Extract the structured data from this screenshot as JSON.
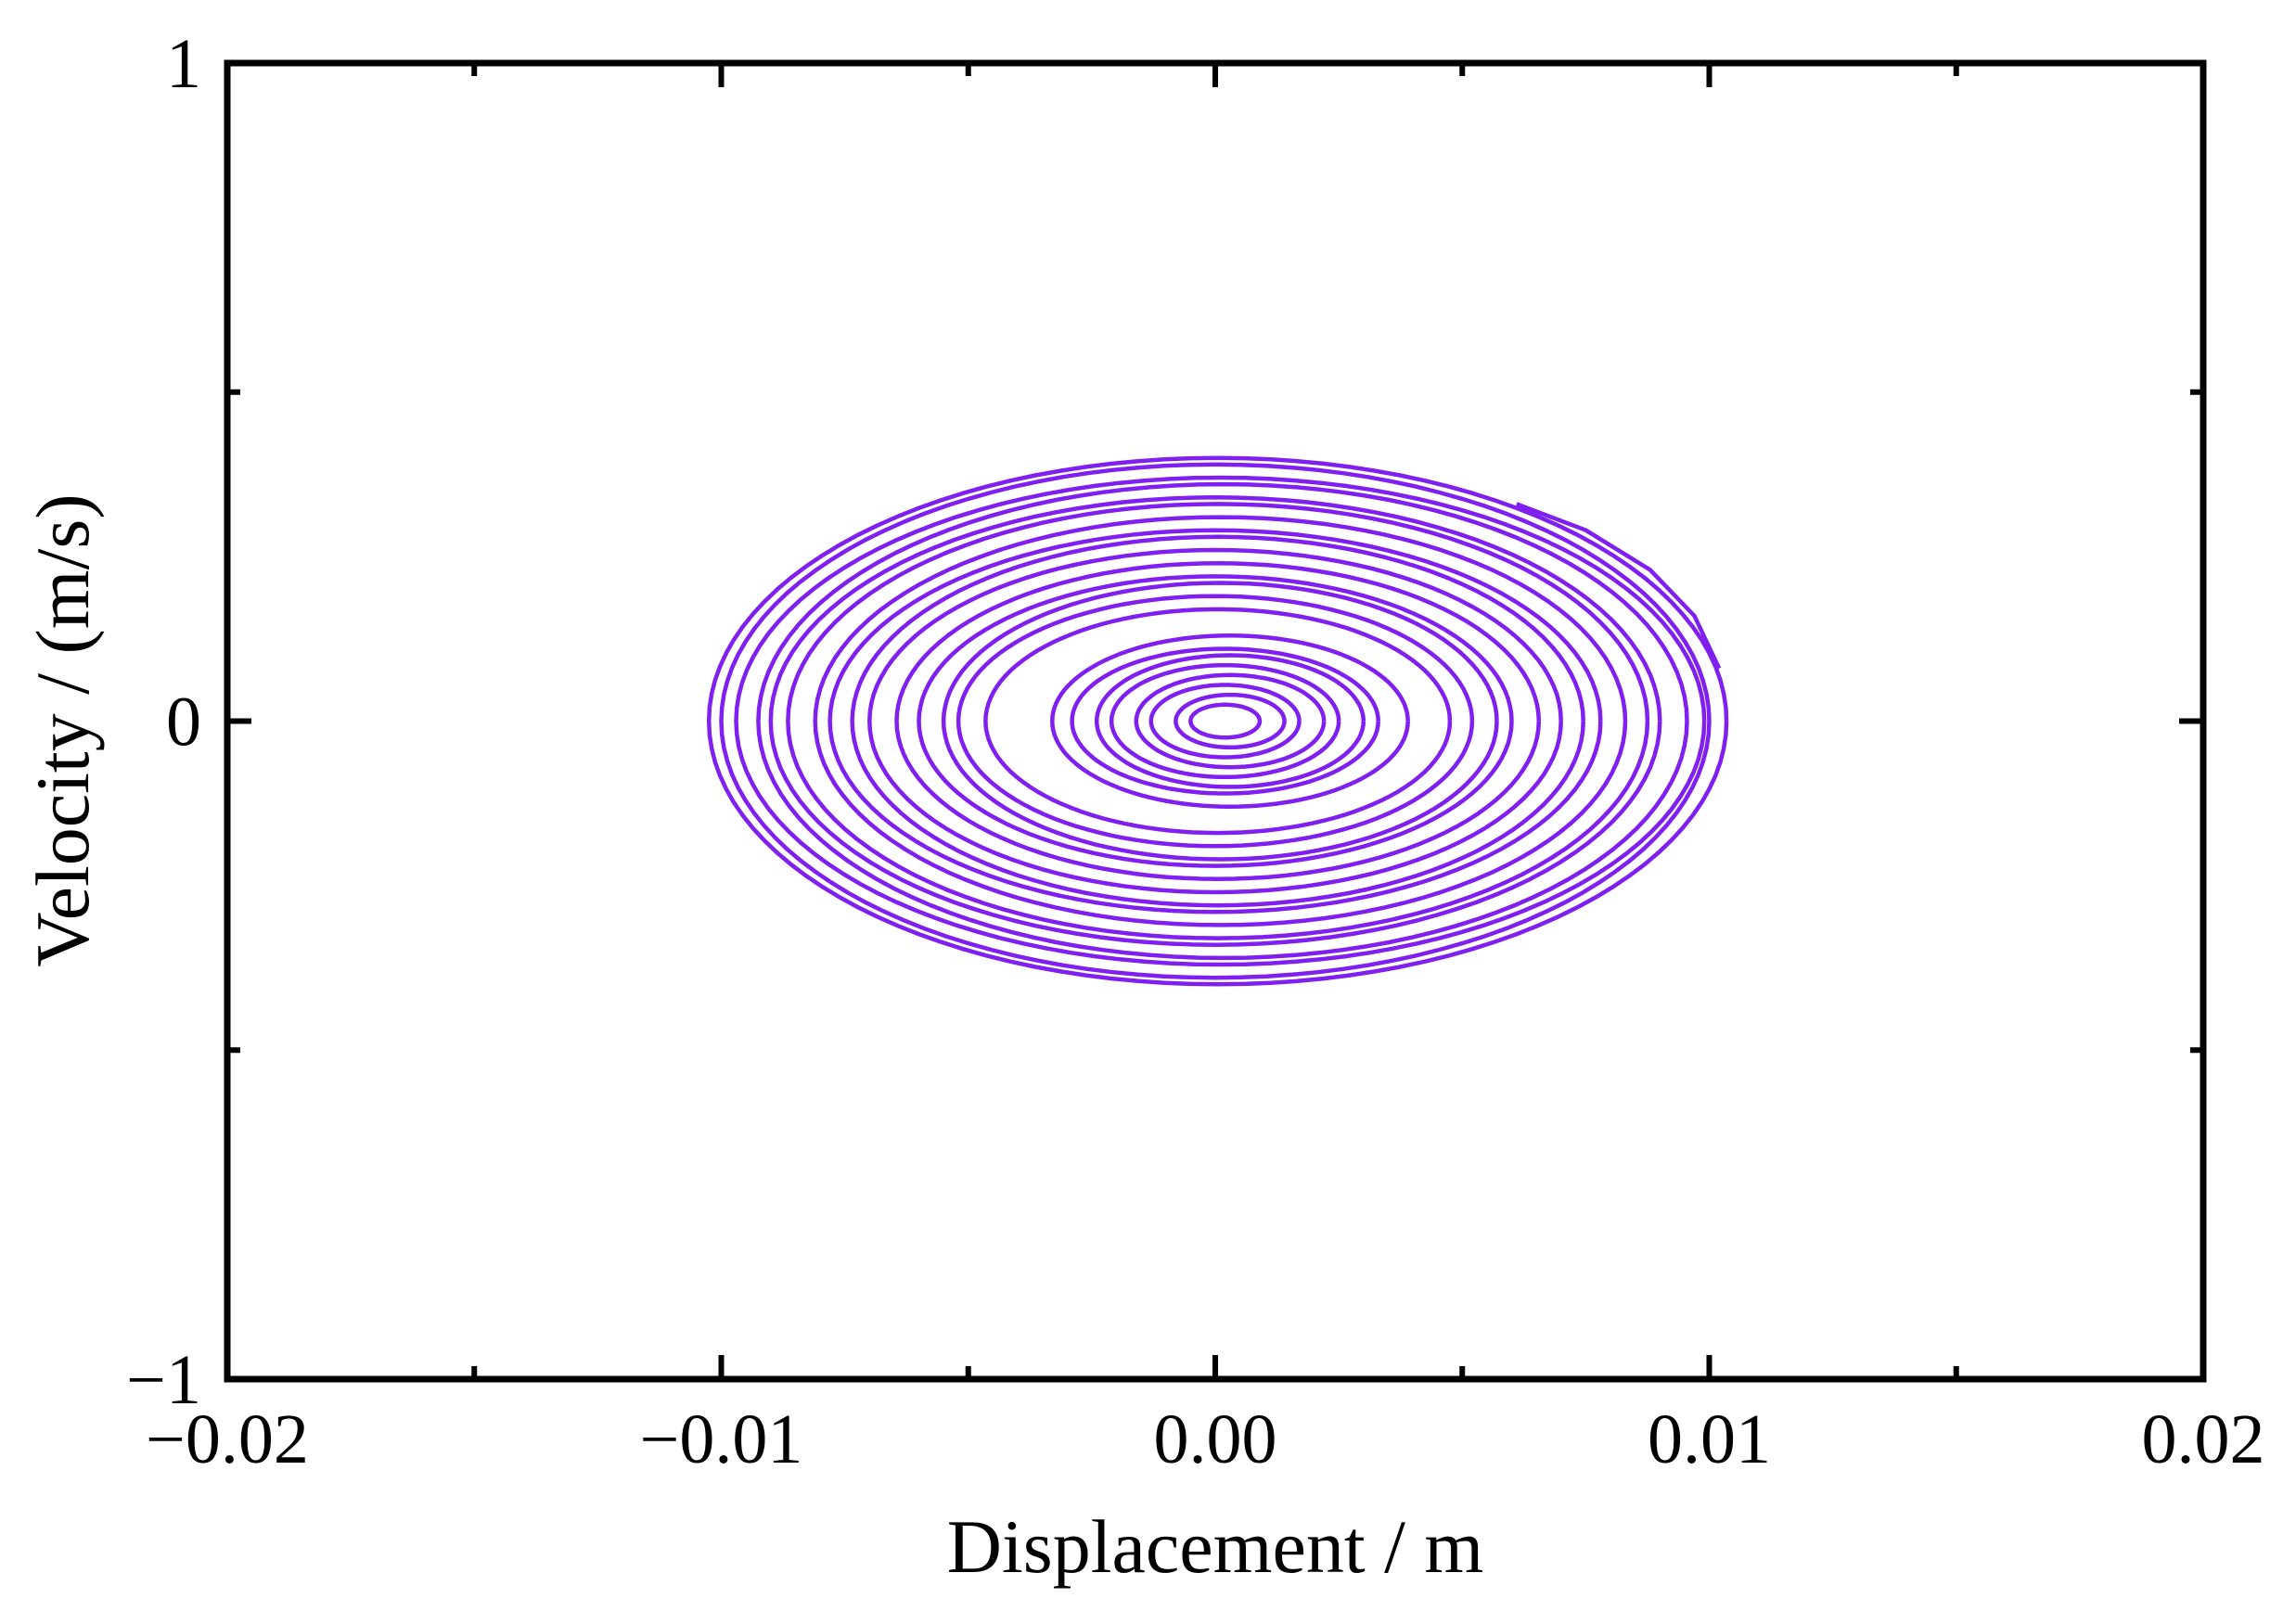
{
  "chart_data": {
    "type": "line",
    "title": "",
    "xlabel": "Displacement / m",
    "ylabel": "Velocity / (m/s)",
    "xlim": [
      -0.02,
      0.02
    ],
    "ylim": [
      -1,
      1
    ],
    "x_ticks": [
      -0.02,
      -0.01,
      0.0,
      0.01,
      0.02
    ],
    "x_tick_labels": [
      "−0.02",
      "−0.01",
      "0.00",
      "0.01",
      "0.02"
    ],
    "x_minor_ticks": [
      -0.015,
      -0.005,
      0.005,
      0.015
    ],
    "y_ticks": [
      -1,
      0,
      1
    ],
    "y_tick_labels": [
      "−1",
      "0",
      "1"
    ],
    "y_minor_ticks": [
      -0.5,
      0.5
    ],
    "grid": false,
    "legend": "none",
    "series_color": "#7f1ff0",
    "series": [
      {
        "description_orbits": [
          {
            "cx": 5e-05,
            "a": 0.0103,
            "b": 0.4
          },
          {
            "cx": 0.0,
            "a": 0.01,
            "b": 0.39
          },
          {
            "cx": 0.0001,
            "a": 0.0098,
            "b": 0.37
          },
          {
            "cx": 0.00015,
            "a": 0.0094,
            "b": 0.36
          },
          {
            "cx": 0.0,
            "a": 0.009,
            "b": 0.34
          },
          {
            "cx": 5e-05,
            "a": 0.0087,
            "b": 0.33
          },
          {
            "cx": 0.0001,
            "a": 0.0082,
            "b": 0.31
          },
          {
            "cx": 0.0,
            "a": 0.0078,
            "b": 0.29
          },
          {
            "cx": 5e-05,
            "a": 0.0074,
            "b": 0.28
          },
          {
            "cx": 0.0,
            "a": 0.007,
            "b": 0.26
          },
          {
            "cx": 5e-05,
            "a": 0.0065,
            "b": 0.24
          },
          {
            "cx": 0.0,
            "a": 0.006,
            "b": 0.22
          },
          {
            "cx": 0.0001,
            "a": 0.0056,
            "b": 0.21
          },
          {
            "cx": 0.0,
            "a": 0.0052,
            "b": 0.19
          },
          {
            "cx": 5e-05,
            "a": 0.0047,
            "b": 0.17
          },
          {
            "cx": 0.0003,
            "a": 0.0036,
            "b": 0.13
          },
          {
            "cx": 0.0002,
            "a": 0.0031,
            "b": 0.11
          },
          {
            "cx": 0.0003,
            "a": 0.0027,
            "b": 0.1
          },
          {
            "cx": 0.0002,
            "a": 0.0023,
            "b": 0.085
          },
          {
            "cx": 0.0003,
            "a": 0.0019,
            "b": 0.07
          },
          {
            "cx": 0.0002,
            "a": 0.0015,
            "b": 0.055
          },
          {
            "cx": 0.0003,
            "a": 0.0011,
            "b": 0.04
          },
          {
            "cx": 0.0002,
            "a": 0.0007,
            "b": 0.025
          }
        ],
        "tail_segment": {
          "x": [
            0.0061,
            0.0075,
            0.0088,
            0.0097,
            0.0102
          ],
          "y": [
            0.33,
            0.29,
            0.23,
            0.16,
            0.08
          ]
        }
      }
    ]
  }
}
